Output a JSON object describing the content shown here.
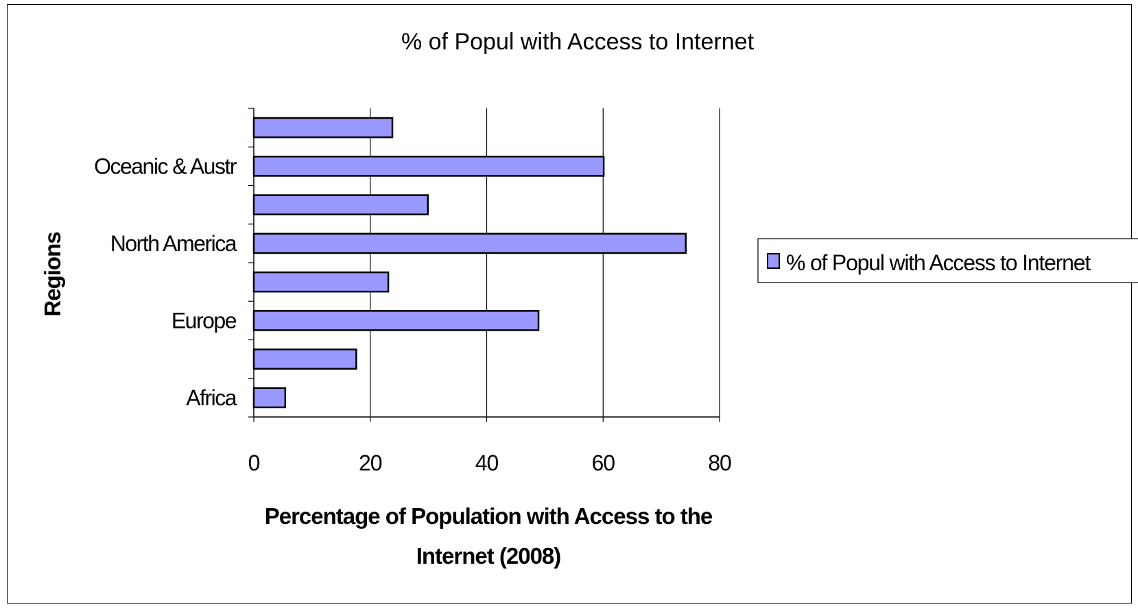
{
  "chart_data": {
    "type": "bar",
    "orientation": "horizontal",
    "title": "% of Popul with Access to Internet",
    "xlabel": "Percentage of Population with Access to the Internet (2008)",
    "ylabel": "Regions",
    "categories": [
      "Africa",
      "",
      "Europe",
      "",
      "North America",
      "",
      "Oceanic & Austr",
      ""
    ],
    "series": [
      {
        "name": "% of Popul with Access to Internet",
        "values": [
          5.4,
          17.6,
          48.9,
          23.1,
          74.2,
          29.9,
          60.1,
          23.8
        ]
      }
    ],
    "xlim": [
      0,
      80
    ],
    "xticks": [
      0,
      20,
      40,
      60,
      80
    ],
    "grid": "vertical",
    "legend": "right",
    "colors": {
      "bar_fill": "#9999ff",
      "bar_stroke": "#000000",
      "grid": "#000000"
    }
  }
}
